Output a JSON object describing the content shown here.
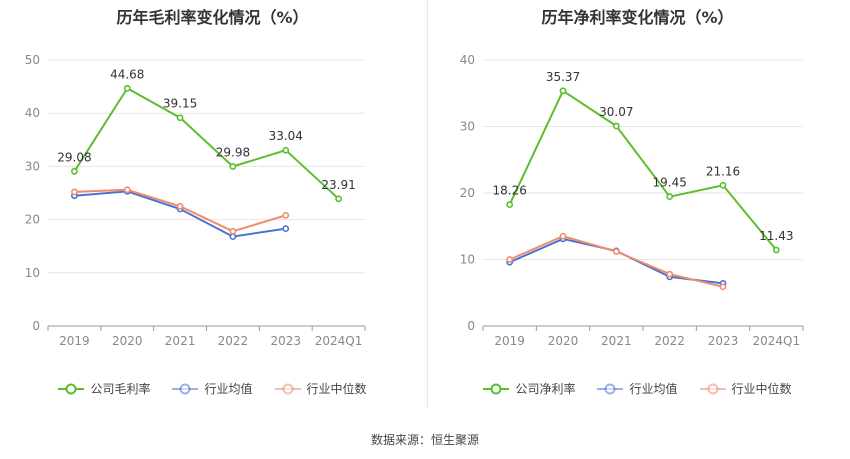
{
  "source_label": "数据来源：恒生聚源",
  "colors": {
    "company": "#5cbd2d",
    "industry_avg": "#4a73d6",
    "industry_median": "#f08c6a",
    "grid": "#e6e6e6",
    "axis": "#999999"
  },
  "chart_data": [
    {
      "type": "line",
      "title": "历年毛利率变化情况（%）",
      "categories": [
        "2019",
        "2020",
        "2021",
        "2022",
        "2023",
        "2024Q1"
      ],
      "ylim": [
        0,
        50
      ],
      "yticks": [
        0,
        10,
        20,
        30,
        40,
        50
      ],
      "grid": true,
      "legend_position": "bottom",
      "series": [
        {
          "name": "公司毛利率",
          "color": "#5cbd2d",
          "values": [
            29.08,
            44.68,
            39.15,
            29.98,
            33.04,
            23.91
          ],
          "labels": [
            "29.08",
            "44.68",
            "39.15",
            "29.98",
            "33.04",
            "23.91"
          ]
        },
        {
          "name": "行业均值",
          "color": "#4a73d6",
          "values": [
            24.5,
            25.3,
            22.0,
            16.8,
            18.3,
            null
          ]
        },
        {
          "name": "行业中位数",
          "color": "#f08c6a",
          "values": [
            25.2,
            25.6,
            22.5,
            17.8,
            20.8,
            null
          ]
        }
      ]
    },
    {
      "type": "line",
      "title": "历年净利率变化情况（%）",
      "categories": [
        "2019",
        "2020",
        "2021",
        "2022",
        "2023",
        "2024Q1"
      ],
      "ylim": [
        0,
        40
      ],
      "yticks": [
        0,
        10,
        20,
        30,
        40
      ],
      "grid": true,
      "legend_position": "bottom",
      "series": [
        {
          "name": "公司净利率",
          "color": "#5cbd2d",
          "values": [
            18.26,
            35.37,
            30.07,
            19.45,
            21.16,
            11.43
          ],
          "labels": [
            "18.26",
            "35.37",
            "30.07",
            "19.45",
            "21.16",
            "11.43"
          ]
        },
        {
          "name": "行业均值",
          "color": "#4a73d6",
          "values": [
            9.6,
            13.1,
            11.3,
            7.4,
            6.4,
            null
          ]
        },
        {
          "name": "行业中位数",
          "color": "#f08c6a",
          "values": [
            10.0,
            13.5,
            11.2,
            7.8,
            5.9,
            null
          ]
        }
      ]
    }
  ]
}
